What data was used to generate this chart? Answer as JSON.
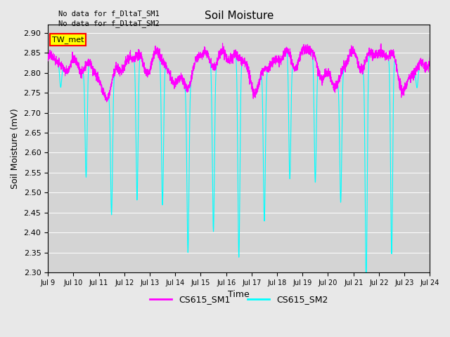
{
  "title": "Soil Moisture",
  "xlabel": "Time",
  "ylabel": "Soil Moisture (mV)",
  "ylim": [
    2.3,
    2.92
  ],
  "yticks": [
    2.3,
    2.35,
    2.4,
    2.45,
    2.5,
    2.55,
    2.6,
    2.65,
    2.7,
    2.75,
    2.8,
    2.85,
    2.9
  ],
  "xlim_start": 9,
  "xlim_end": 24,
  "xtick_labels": [
    "Jul 9",
    "Jul 10",
    "Jul 11",
    "Jul 12",
    "Jul 13",
    "Jul 14",
    "Jul 15",
    "Jul 16",
    "Jul 17",
    "Jul 18",
    "Jul 19",
    "Jul 20",
    "Jul 21",
    "Jul 22",
    "Jul 23",
    "Jul 24"
  ],
  "color_SM1": "#ff00ff",
  "color_SM2": "#00ffff",
  "bg_color": "#e8e8e8",
  "plot_bg_color": "#d4d4d4",
  "annotation_text1": "No data for f_DltaT_SM1",
  "annotation_text2": "No data for f_DltaT_SM2",
  "box_label": "TW_met",
  "box_color": "#ffff00",
  "box_edge_color": "#ff0000",
  "dip_depths": [
    0.06,
    0.28,
    0.33,
    0.36,
    0.36,
    0.41,
    0.41,
    0.5,
    0.38,
    0.31,
    0.31,
    0.32,
    0.56,
    0.5,
    0.05
  ],
  "dip_times": [
    9.5,
    10.5,
    11.5,
    12.5,
    13.5,
    14.5,
    15.5,
    16.5,
    17.5,
    18.5,
    19.5,
    20.5,
    21.5,
    22.5,
    23.5
  ],
  "upper_base": 2.8,
  "upper_amp": 0.045,
  "upper_freq": 0.85
}
